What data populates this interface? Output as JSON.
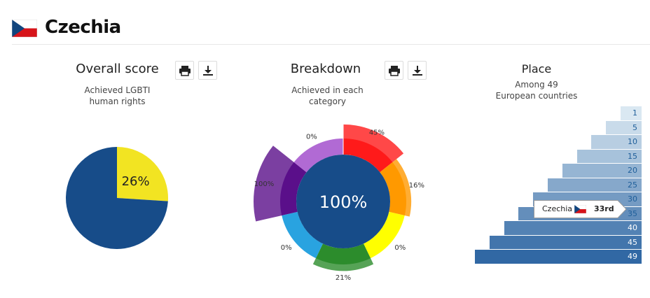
{
  "header": {
    "country": "Czechia",
    "flag_icon": "czech-flag"
  },
  "overall": {
    "title": "Overall score",
    "subtitle_line1": "Achieved LGBTI",
    "subtitle_line2": "human rights",
    "value_label": "26%",
    "print_icon": "print-icon",
    "download_icon": "download-icon"
  },
  "breakdown": {
    "title": "Breakdown",
    "subtitle_line1": "Achieved in each",
    "subtitle_line2": "category",
    "center_label": "100%",
    "print_icon": "print-icon",
    "download_icon": "download-icon"
  },
  "place": {
    "title": "Place",
    "subtitle_line1": "Among 49",
    "subtitle_line2": "European countries",
    "marker_country": "Czechia",
    "marker_rank": "33rd",
    "marker_flag_icon": "czech-flag"
  },
  "colors": {
    "navy": "#174c89",
    "yellow": "#f2e422",
    "red": "#ff1a1a",
    "orange": "#ff9900",
    "green": "#2c8c2c",
    "purple": "#5a0f8a",
    "cyan": "#29a3e0",
    "lavender": "#b16ad4"
  },
  "chart_data": [
    {
      "type": "pie",
      "title": "Overall score",
      "slices": [
        {
          "label": "26%",
          "value": 26,
          "color": "#f2e422"
        },
        {
          "label": "",
          "value": 74,
          "color": "#174c89"
        }
      ]
    },
    {
      "type": "pie",
      "title": "Breakdown",
      "center_label": "100%",
      "categories": [
        {
          "label": "45%",
          "value": 45,
          "color": "#ff1a1a"
        },
        {
          "label": "16%",
          "value": 16,
          "color": "#ff9900"
        },
        {
          "label": "0%",
          "value": 0,
          "color": "#ffff00"
        },
        {
          "label": "21%",
          "value": 21,
          "color": "#2c8c2c"
        },
        {
          "label": "0%",
          "value": 0,
          "color": "#29a3e0"
        },
        {
          "label": "100%",
          "value": 100,
          "color": "#5a0f8a"
        },
        {
          "label": "0%",
          "value": 0,
          "color": "#b16ad4"
        }
      ]
    },
    {
      "type": "bar",
      "title": "Place",
      "categories": [
        "1",
        "5",
        "10",
        "15",
        "20",
        "25",
        "30",
        "35",
        "40",
        "45",
        "49"
      ],
      "values": [
        1,
        5,
        10,
        15,
        20,
        25,
        30,
        35,
        40,
        45,
        49
      ],
      "highlight": {
        "country": "Czechia",
        "rank": "33rd"
      }
    }
  ]
}
